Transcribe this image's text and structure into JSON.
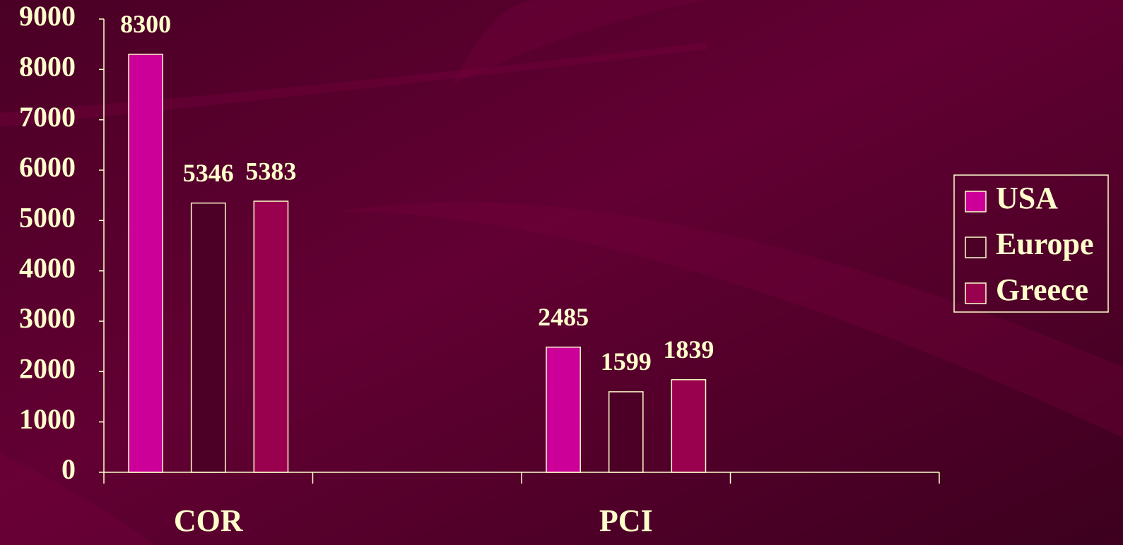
{
  "chart_data": {
    "type": "bar",
    "categories": [
      "COR",
      null,
      "PCI",
      null
    ],
    "series": [
      {
        "name": "USA",
        "color": "#cc0099",
        "values": [
          8300,
          null,
          2485,
          null
        ]
      },
      {
        "name": "Europe",
        "color": "#4d0026",
        "values": [
          5346,
          null,
          1599,
          null
        ]
      },
      {
        "name": "Greece",
        "color": "#99004d",
        "values": [
          5383,
          null,
          1839,
          null
        ]
      }
    ],
    "ylim": [
      0,
      9000
    ],
    "yticks": [
      0,
      1000,
      2000,
      3000,
      4000,
      5000,
      6000,
      7000,
      8000,
      9000
    ],
    "grid": false,
    "legend": "right"
  }
}
